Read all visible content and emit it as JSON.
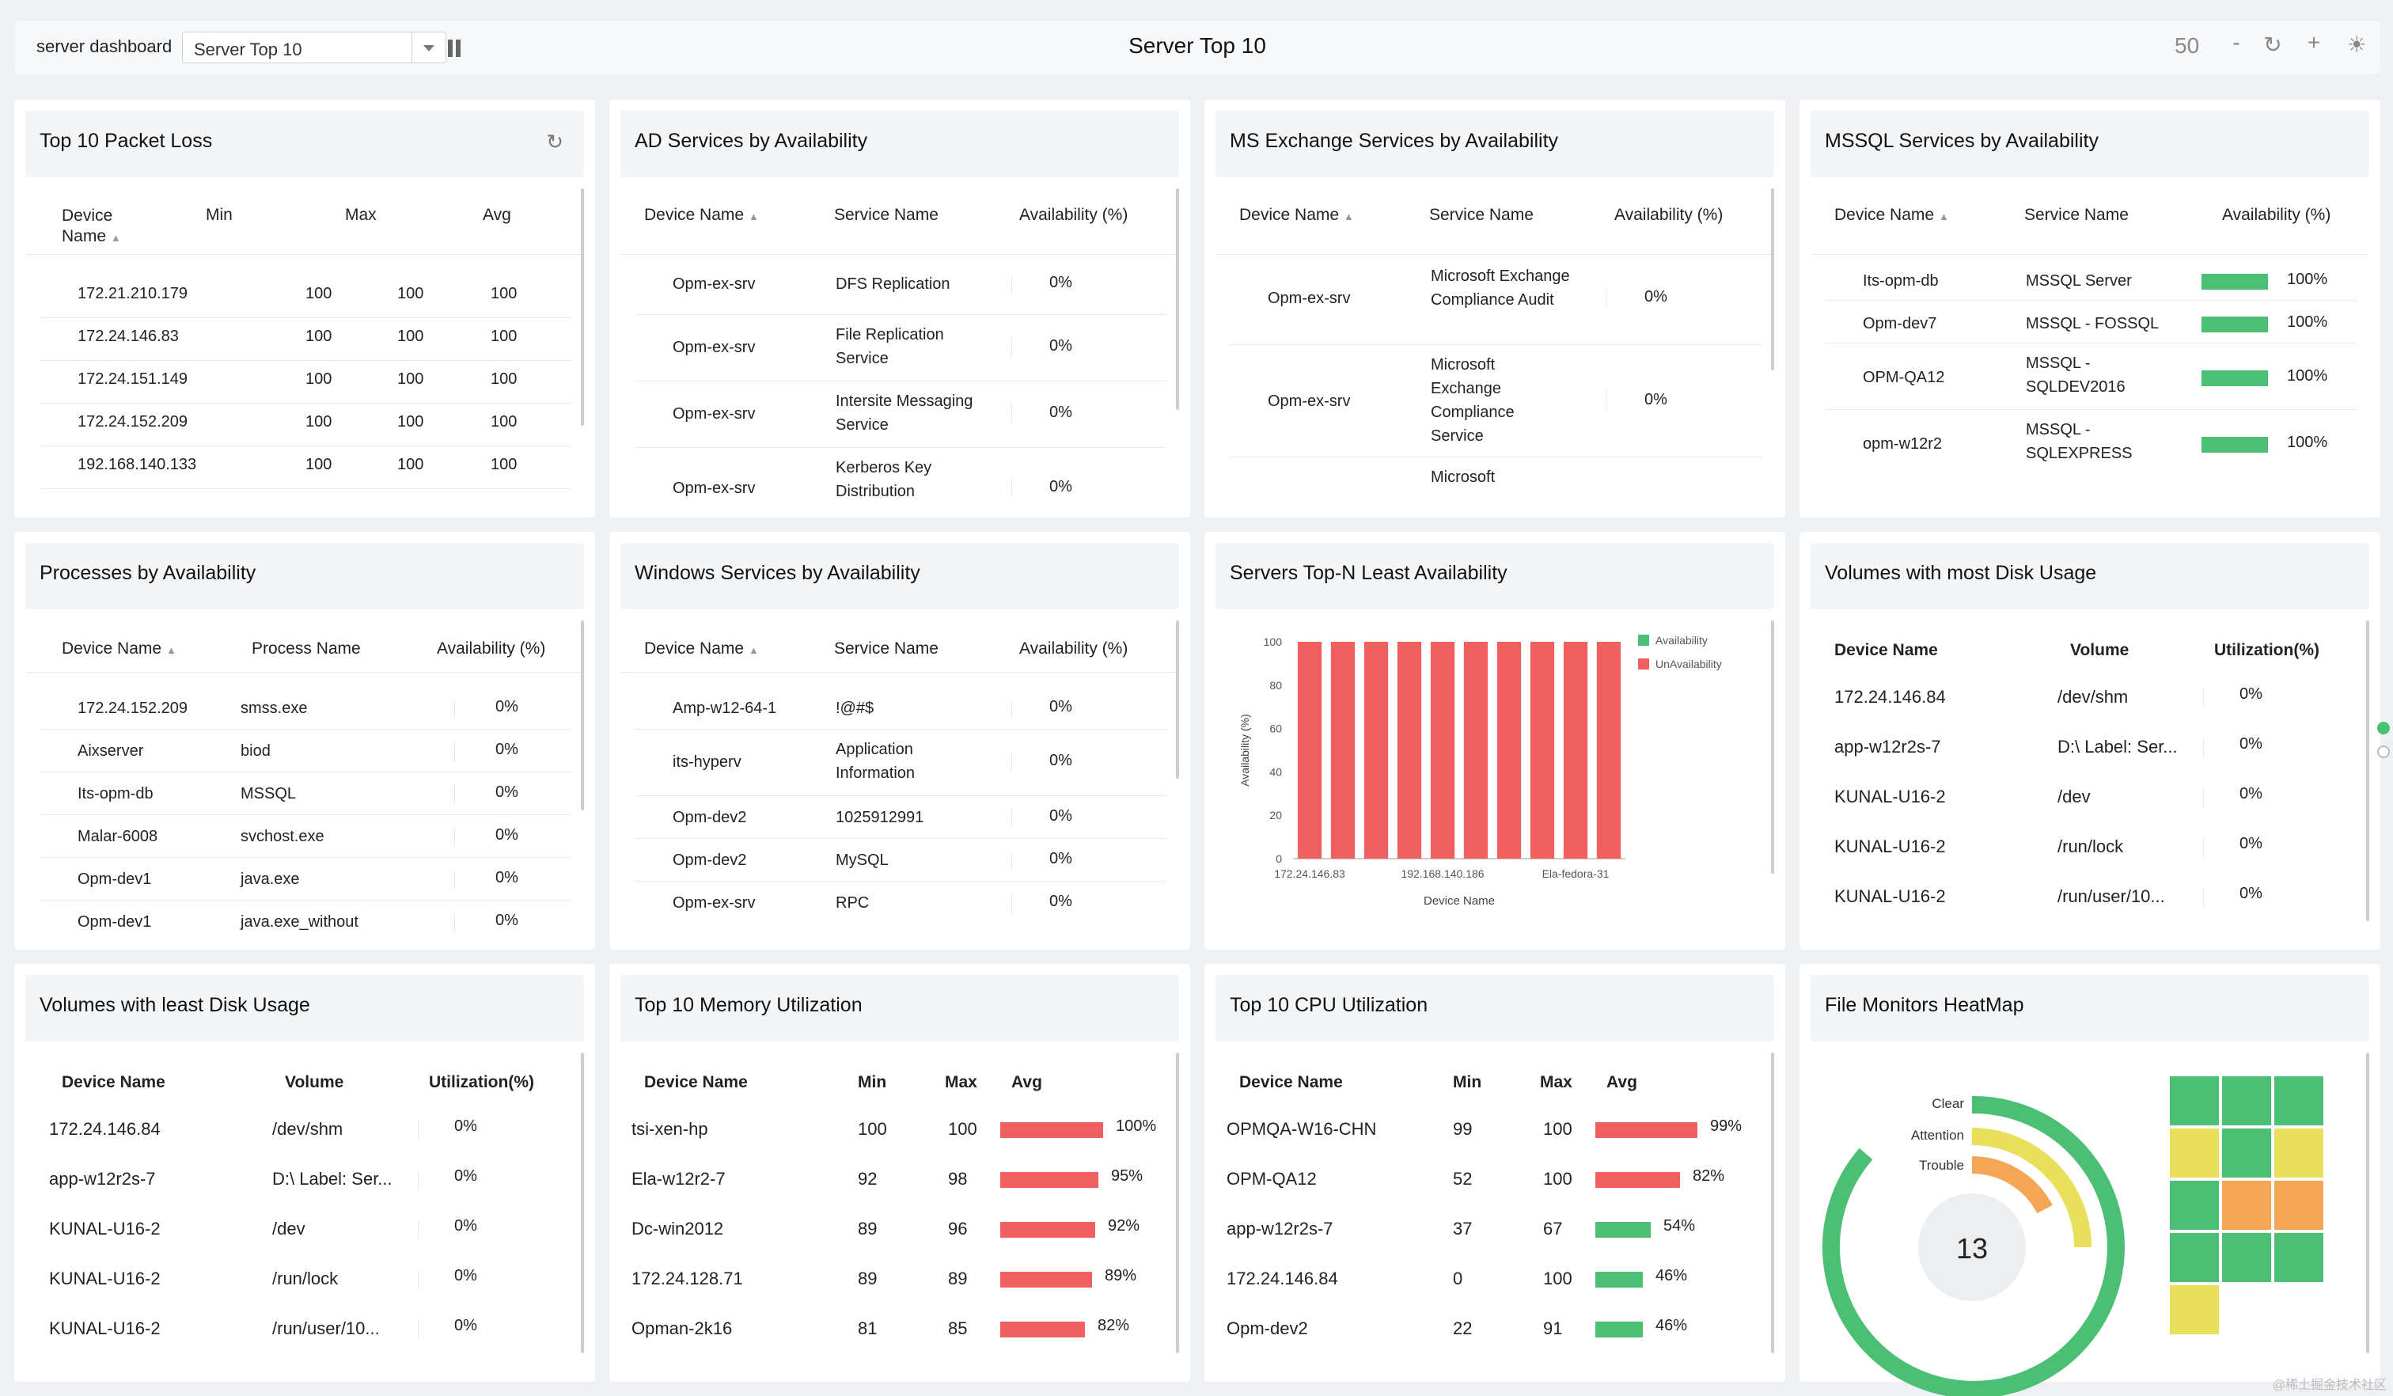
{
  "header": {
    "dashboard_label": "server dashboard",
    "selector_value": "Server Top 10",
    "title": "Server Top 10",
    "zoom": "50",
    "minus": "-",
    "plus": "+"
  },
  "colors": {
    "green": "#4bbf73",
    "red": "#f06060",
    "yellow": "#e8e05a",
    "orange": "#f5a654"
  },
  "packet_loss": {
    "title": "Top 10 Packet Loss",
    "cols": [
      "Device Name",
      "Min",
      "Max",
      "Avg"
    ],
    "rows": [
      {
        "device": "172.21.210.179",
        "min": "100",
        "max": "100",
        "avg": "100"
      },
      {
        "device": "172.24.146.83",
        "min": "100",
        "max": "100",
        "avg": "100"
      },
      {
        "device": "172.24.151.149",
        "min": "100",
        "max": "100",
        "avg": "100"
      },
      {
        "device": "172.24.152.209",
        "min": "100",
        "max": "100",
        "avg": "100"
      },
      {
        "device": "192.168.140.133",
        "min": "100",
        "max": "100",
        "avg": "100"
      }
    ]
  },
  "ad_services": {
    "title": "AD Services by Availability",
    "cols": [
      "Device Name",
      "Service Name",
      "Availability (%)"
    ],
    "rows": [
      {
        "device": "Opm-ex-srv",
        "service": "DFS Replication",
        "avail": "0%"
      },
      {
        "device": "Opm-ex-srv",
        "service": "File Replication Service",
        "avail": "0%"
      },
      {
        "device": "Opm-ex-srv",
        "service": "Intersite Messaging Service",
        "avail": "0%"
      },
      {
        "device": "Opm-ex-srv",
        "service": "Kerberos Key Distribution",
        "avail": "0%"
      }
    ]
  },
  "exchange_services": {
    "title": "MS Exchange Services by Availability",
    "cols": [
      "Device Name",
      "Service Name",
      "Availability (%)"
    ],
    "rows": [
      {
        "device": "Opm-ex-srv",
        "service": "Microsoft Exchange Compliance Audit",
        "avail": "0%"
      },
      {
        "device": "Opm-ex-srv",
        "service": "Microsoft Exchange Compliance Service",
        "avail": "0%"
      },
      {
        "device": "",
        "service": "Microsoft",
        "avail": ""
      }
    ]
  },
  "mssql_services": {
    "title": "MSSQL Services by Availability",
    "cols": [
      "Device Name",
      "Service Name",
      "Availability (%)"
    ],
    "rows": [
      {
        "device": "Its-opm-db",
        "service": "MSSQL Server",
        "avail": "100%"
      },
      {
        "device": "Opm-dev7",
        "service": "MSSQL - FOSSQL",
        "avail": "100%"
      },
      {
        "device": "OPM-QA12",
        "service": "MSSQL - SQLDEV2016",
        "avail": "100%"
      },
      {
        "device": "opm-w12r2",
        "service": "MSSQL - SQLEXPRESS",
        "avail": "100%"
      }
    ]
  },
  "processes": {
    "title": "Processes by Availability",
    "cols": [
      "Device Name",
      "Process Name",
      "Availability (%)"
    ],
    "rows": [
      {
        "device": "172.24.152.209",
        "process": "smss.exe",
        "avail": "0%"
      },
      {
        "device": "Aixserver",
        "process": "biod",
        "avail": "0%"
      },
      {
        "device": "Its-opm-db",
        "process": "MSSQL",
        "avail": "0%"
      },
      {
        "device": "Malar-6008",
        "process": "svchost.exe",
        "avail": "0%"
      },
      {
        "device": "Opm-dev1",
        "process": "java.exe",
        "avail": "0%"
      },
      {
        "device": "Opm-dev1",
        "process": "java.exe_without",
        "avail": "0%"
      }
    ]
  },
  "windows_services": {
    "title": "Windows Services by Availability",
    "cols": [
      "Device Name",
      "Service Name",
      "Availability (%)"
    ],
    "rows": [
      {
        "device": "Amp-w12-64-1",
        "service": "!@#$",
        "avail": "0%"
      },
      {
        "device": "its-hyperv",
        "service": "Application Information",
        "avail": "0%"
      },
      {
        "device": "Opm-dev2",
        "service": "1025912991",
        "avail": "0%"
      },
      {
        "device": "Opm-dev2",
        "service": "MySQL",
        "avail": "0%"
      },
      {
        "device": "Opm-ex-srv",
        "service": "RPC",
        "avail": "0%"
      }
    ]
  },
  "least_availability": {
    "title": "Servers Top-N Least Availability"
  },
  "chart_data": {
    "type": "bar",
    "categories": [
      "172.24.146.83",
      "",
      "",
      "",
      "192.168.140.186",
      "",
      "",
      "",
      "Ela-fedora-31",
      ""
    ],
    "series": [
      {
        "name": "Availability",
        "values": [
          0,
          0,
          0,
          0,
          0,
          0,
          0,
          0,
          0,
          0
        ]
      },
      {
        "name": "UnAvailability",
        "values": [
          100,
          100,
          100,
          100,
          100,
          100,
          100,
          100,
          100,
          100
        ]
      }
    ],
    "stacked": true,
    "xlabel": "Device Name",
    "ylabel": "Availability (%)",
    "ylim": [
      0,
      100
    ],
    "yticks": [
      "0",
      "20",
      "40",
      "60",
      "80",
      "100"
    ],
    "legend": "top-right"
  },
  "most_disk": {
    "title": "Volumes with most Disk Usage",
    "cols": [
      "Device Name",
      "Volume",
      "Utilization(%)"
    ],
    "rows": [
      {
        "device": "172.24.146.84",
        "volume": "/dev/shm",
        "util": "0%"
      },
      {
        "device": "app-w12r2s-7",
        "volume": "D:\\ Label: Ser...",
        "util": "0%"
      },
      {
        "device": "KUNAL-U16-2",
        "volume": "/dev",
        "util": "0%"
      },
      {
        "device": "KUNAL-U16-2",
        "volume": "/run/lock",
        "util": "0%"
      },
      {
        "device": "KUNAL-U16-2",
        "volume": "/run/user/10...",
        "util": "0%"
      }
    ]
  },
  "least_disk": {
    "title": "Volumes with least Disk Usage",
    "cols": [
      "Device Name",
      "Volume",
      "Utilization(%)"
    ],
    "rows": [
      {
        "device": "172.24.146.84",
        "volume": "/dev/shm",
        "util": "0%"
      },
      {
        "device": "app-w12r2s-7",
        "volume": "D:\\ Label: Ser...",
        "util": "0%"
      },
      {
        "device": "KUNAL-U16-2",
        "volume": "/dev",
        "util": "0%"
      },
      {
        "device": "KUNAL-U16-2",
        "volume": "/run/lock",
        "util": "0%"
      },
      {
        "device": "KUNAL-U16-2",
        "volume": "/run/user/10...",
        "util": "0%"
      }
    ]
  },
  "memory": {
    "title": "Top 10 Memory Utilization",
    "cols": [
      "Device Name",
      "Min",
      "Max",
      "Avg"
    ],
    "rows": [
      {
        "device": "tsi-xen-hp",
        "min": "100",
        "max": "100",
        "avg": "100%",
        "pct": 100,
        "color": "#f06060"
      },
      {
        "device": "Ela-w12r2-7",
        "min": "92",
        "max": "98",
        "avg": "95%",
        "pct": 95,
        "color": "#f06060"
      },
      {
        "device": "Dc-win2012",
        "min": "89",
        "max": "96",
        "avg": "92%",
        "pct": 92,
        "color": "#f06060"
      },
      {
        "device": "172.24.128.71",
        "min": "89",
        "max": "89",
        "avg": "89%",
        "pct": 89,
        "color": "#f06060"
      },
      {
        "device": "Opman-2k16",
        "min": "81",
        "max": "85",
        "avg": "82%",
        "pct": 82,
        "color": "#f06060"
      }
    ]
  },
  "cpu": {
    "title": "Top 10 CPU Utilization",
    "cols": [
      "Device Name",
      "Min",
      "Max",
      "Avg"
    ],
    "rows": [
      {
        "device": "OPMQA-W16-CHN",
        "min": "99",
        "max": "100",
        "avg": "99%",
        "pct": 99,
        "color": "#f06060"
      },
      {
        "device": "OPM-QA12",
        "min": "52",
        "max": "100",
        "avg": "82%",
        "pct": 82,
        "color": "#f06060"
      },
      {
        "device": "app-w12r2s-7",
        "min": "37",
        "max": "67",
        "avg": "54%",
        "pct": 54,
        "color": "#4bbf73"
      },
      {
        "device": "172.24.146.84",
        "min": "0",
        "max": "100",
        "avg": "46%",
        "pct": 46,
        "color": "#4bbf73"
      },
      {
        "device": "Opm-dev2",
        "min": "22",
        "max": "91",
        "avg": "46%",
        "pct": 46,
        "color": "#4bbf73"
      }
    ]
  },
  "heatmap": {
    "title": "File Monitors HeatMap",
    "legend": [
      "Clear",
      "Attention",
      "Trouble"
    ],
    "count": "13",
    "cells": [
      [
        "green",
        "green",
        "green"
      ],
      [
        "yellow",
        "green",
        "yellow"
      ],
      [
        "green",
        "orange",
        "orange"
      ],
      [
        "green",
        "green",
        "green"
      ],
      [
        "yellow",
        "",
        ""
      ]
    ]
  },
  "watermark": "@稀土掘金技术社区"
}
